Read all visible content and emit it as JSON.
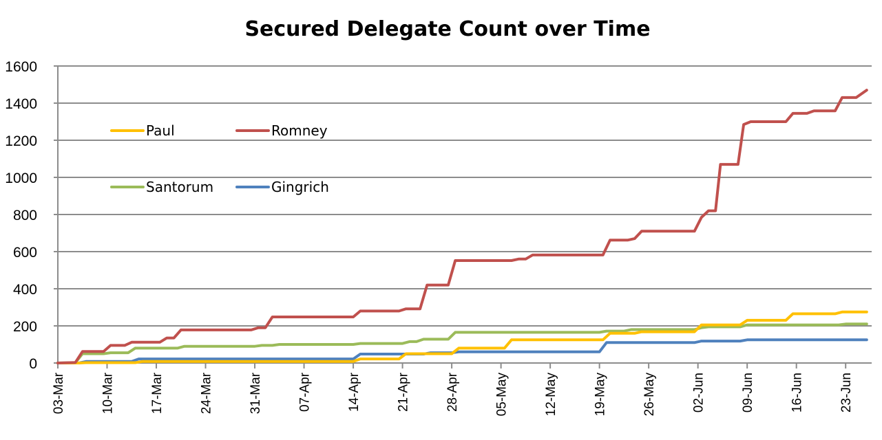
{
  "chart_data": {
    "type": "line",
    "title": "Secured Delegate Count over Time",
    "xlabel": "",
    "ylabel": "",
    "ylim": [
      0,
      1600
    ],
    "yticks": [
      "0",
      "200",
      "400",
      "600",
      "800",
      "1000",
      "1200",
      "1400",
      "1600"
    ],
    "ytick_values": [
      0,
      200,
      400,
      600,
      800,
      1000,
      1200,
      1400,
      1600
    ],
    "x_unit": "days since 03-Mar",
    "xlim": [
      0,
      115.7
    ],
    "xticks": [
      "03-Mar",
      "10-Mar",
      "17-Mar",
      "24-Mar",
      "31-Mar",
      "07-Apr",
      "14-Apr",
      "21-Apr",
      "28-Apr",
      "05-May",
      "12-May",
      "19-May",
      "26-May",
      "02-Jun",
      "09-Jun",
      "16-Jun",
      "23-Jun"
    ],
    "xtick_values": [
      0,
      7,
      14,
      21,
      28,
      35,
      42,
      49,
      56,
      63,
      70,
      77,
      84,
      91,
      98,
      105,
      112
    ],
    "grid": "horizontal",
    "legend_position": "upper-left inside plot",
    "series": [
      {
        "name": "Paul",
        "color": "#FFC000",
        "x": [
          0,
          3,
          4,
          11,
          12,
          42,
          43,
          48.5,
          49.5,
          56,
          57,
          63.5,
          64.5,
          77.5,
          78.5,
          82,
          83,
          90.5,
          91.5,
          97,
          98,
          103.5,
          104.5,
          110.5,
          111.5,
          115
        ],
        "y": [
          0,
          0,
          2,
          2,
          8,
          8,
          22,
          22,
          50,
          50,
          80,
          80,
          125,
          125,
          160,
          160,
          168,
          168,
          205,
          205,
          230,
          230,
          265,
          265,
          275,
          275
        ]
      },
      {
        "name": "Romney",
        "color": "#C0504D",
        "x": [
          0,
          2.5,
          3.5,
          6.5,
          7.5,
          9.5,
          10.5,
          14.5,
          15.5,
          16.5,
          17.5,
          27.5,
          28.5,
          29.5,
          30.5,
          42,
          43,
          48.5,
          49.5,
          51.5,
          52.5,
          55.5,
          56.5,
          64.5,
          65.5,
          66.5,
          67.5,
          77.5,
          78.5,
          81,
          82,
          83,
          90.5,
          91.5,
          92.5,
          93.5,
          94.2,
          96.7,
          97.5,
          98.5,
          103.5,
          104.5,
          106.5,
          107.5,
          110.5,
          111.5,
          113.5,
          115
        ],
        "y": [
          0,
          3,
          62,
          62,
          95,
          95,
          112,
          112,
          135,
          135,
          178,
          178,
          190,
          190,
          248,
          248,
          280,
          280,
          292,
          292,
          420,
          420,
          552,
          552,
          560,
          560,
          582,
          582,
          662,
          662,
          670,
          710,
          710,
          785,
          820,
          820,
          1070,
          1070,
          1285,
          1300,
          1300,
          1345,
          1345,
          1358,
          1358,
          1430,
          1430,
          1470
        ]
      },
      {
        "name": "Santorum",
        "color": "#9BBB59",
        "x": [
          0,
          2.5,
          3.5,
          6.5,
          7.5,
          10,
          11,
          17,
          18,
          28,
          29,
          30.5,
          31.5,
          42,
          43,
          49,
          50,
          51,
          52,
          55.5,
          56.5,
          77,
          78,
          80.5,
          81.5,
          90.5,
          91.5,
          92.5,
          97,
          98,
          111,
          112,
          115
        ],
        "y": [
          0,
          2,
          50,
          50,
          55,
          55,
          80,
          80,
          90,
          90,
          95,
          95,
          100,
          100,
          105,
          105,
          115,
          115,
          128,
          128,
          165,
          165,
          172,
          172,
          180,
          180,
          190,
          195,
          195,
          205,
          205,
          210,
          210
        ]
      },
      {
        "name": "Gingrich",
        "color": "#4F81BD",
        "x": [
          0,
          3,
          4,
          10.5,
          11.5,
          42,
          43,
          52,
          53,
          56,
          57,
          77,
          78,
          90.5,
          91.5,
          97,
          98,
          115
        ],
        "y": [
          0,
          0,
          8,
          8,
          22,
          22,
          48,
          48,
          55,
          55,
          60,
          60,
          110,
          110,
          118,
          118,
          125,
          125
        ]
      }
    ]
  }
}
